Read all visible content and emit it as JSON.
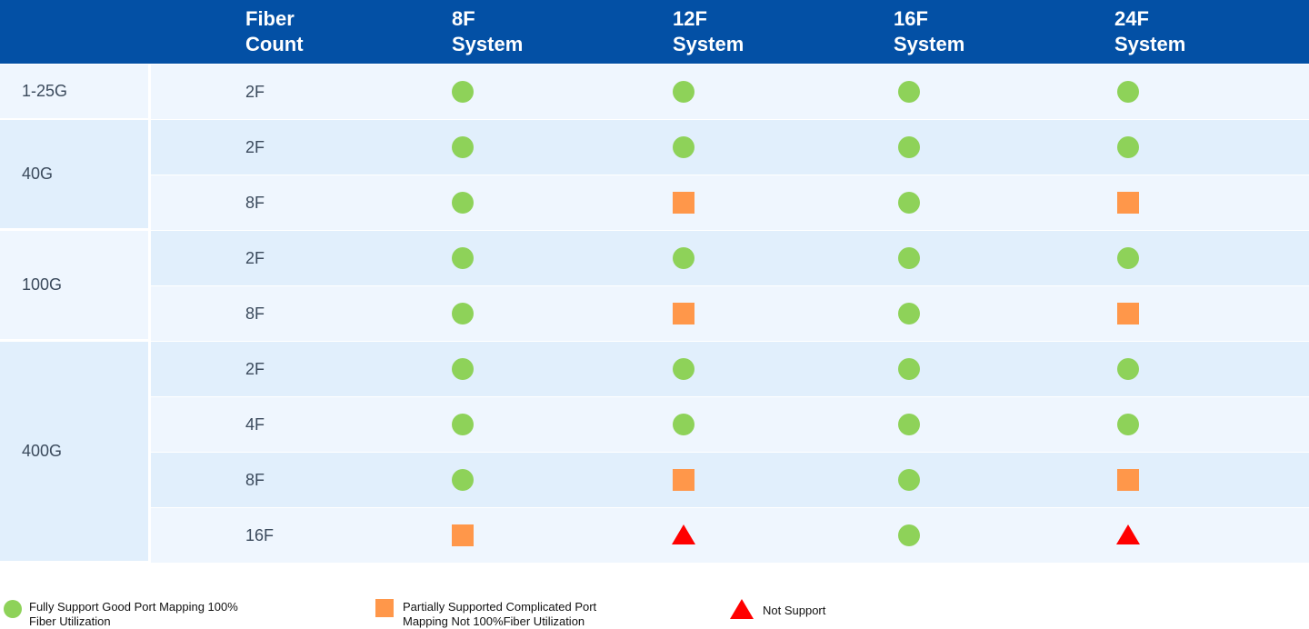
{
  "header": {
    "fiber_count": [
      "Fiber",
      "Count"
    ],
    "systems": [
      [
        "8F",
        "System"
      ],
      [
        "12F",
        "System"
      ],
      [
        "16F",
        "System"
      ],
      [
        "24F",
        "System"
      ]
    ]
  },
  "speed_groups": [
    {
      "label": "1-25G"
    },
    {
      "label": "40G"
    },
    {
      "label": "100G"
    },
    {
      "label": "400G"
    }
  ],
  "rows": [
    {
      "fiber": "2F",
      "marks": [
        "full",
        "full",
        "full",
        "full"
      ]
    },
    {
      "fiber": "2F",
      "marks": [
        "full",
        "full",
        "full",
        "full"
      ]
    },
    {
      "fiber": "8F",
      "marks": [
        "full",
        "partial",
        "full",
        "partial"
      ]
    },
    {
      "fiber": "2F",
      "marks": [
        "full",
        "full",
        "full",
        "full"
      ]
    },
    {
      "fiber": "8F",
      "marks": [
        "full",
        "partial",
        "full",
        "partial"
      ]
    },
    {
      "fiber": "2F",
      "marks": [
        "full",
        "full",
        "full",
        "full"
      ]
    },
    {
      "fiber": "4F",
      "marks": [
        "full",
        "full",
        "full",
        "full"
      ]
    },
    {
      "fiber": "8F",
      "marks": [
        "full",
        "partial",
        "full",
        "partial"
      ]
    },
    {
      "fiber": "16F",
      "marks": [
        "partial",
        "none",
        "full",
        "none"
      ]
    }
  ],
  "legend": {
    "full": [
      "Fully Support  Good Port Mapping 100%",
      "Fiber Utilization"
    ],
    "partial": [
      "Partially Supported Complicated Port",
      "Mapping Not 100%Fiber Utilization"
    ],
    "none": [
      "Not Support"
    ]
  },
  "colors": {
    "header_bg": "#0350a5",
    "full": "#8ed259",
    "partial": "#ff974a",
    "none": "#ff0000",
    "row_light": "#eff6fe",
    "row_dark": "#e1effc"
  }
}
